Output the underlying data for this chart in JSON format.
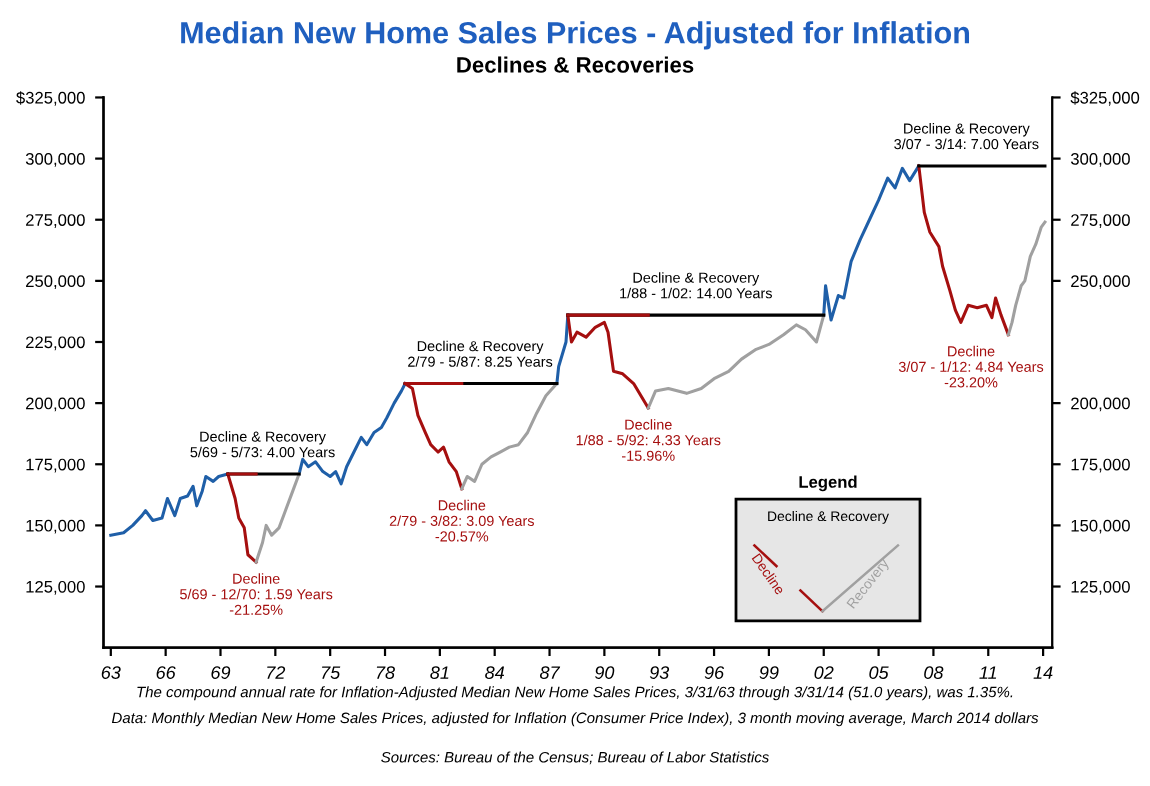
{
  "chart_data": {
    "type": "line",
    "title": "Median New Home Sales Prices - Adjusted for Inflation",
    "subtitle": "Declines & Recoveries",
    "ylim": [
      100000,
      325000
    ],
    "yticks": [
      {
        "value": 325000,
        "label": "$325,000"
      },
      {
        "value": 300000,
        "label": "300,000"
      },
      {
        "value": 275000,
        "label": "275,000"
      },
      {
        "value": 250000,
        "label": "250,000"
      },
      {
        "value": 225000,
        "label": "225,000"
      },
      {
        "value": 200000,
        "label": "200,000"
      },
      {
        "value": 175000,
        "label": "175,000"
      },
      {
        "value": 150000,
        "label": "150,000"
      },
      {
        "value": 125000,
        "label": "125,000"
      }
    ],
    "y2lim": [
      100000,
      325000
    ],
    "y2ticks": [
      {
        "value": 325000,
        "label": "$325,000"
      },
      {
        "value": 300000,
        "label": "300,000"
      },
      {
        "value": 275000,
        "label": "275,000"
      },
      {
        "value": 250000,
        "label": "250,000"
      },
      {
        "value": 200000,
        "label": "200,000"
      },
      {
        "value": 175000,
        "label": "175,000"
      },
      {
        "value": 150000,
        "label": "150,000"
      },
      {
        "value": 125000,
        "label": "125,000"
      }
    ],
    "xlim": [
      1962.6,
      2014.5
    ],
    "xticks": [
      {
        "value": 1963,
        "label": "63"
      },
      {
        "value": 1966,
        "label": "66"
      },
      {
        "value": 1969,
        "label": "69"
      },
      {
        "value": 1972,
        "label": "72"
      },
      {
        "value": 1975,
        "label": "75"
      },
      {
        "value": 1978,
        "label": "78"
      },
      {
        "value": 1981,
        "label": "81"
      },
      {
        "value": 1984,
        "label": "84"
      },
      {
        "value": 1987,
        "label": "87"
      },
      {
        "value": 1990,
        "label": "90"
      },
      {
        "value": 1993,
        "label": "93"
      },
      {
        "value": 1996,
        "label": "96"
      },
      {
        "value": 1999,
        "label": "99"
      },
      {
        "value": 2002,
        "label": "02"
      },
      {
        "value": 2005,
        "label": "05"
      },
      {
        "value": 2008,
        "label": "08"
      },
      {
        "value": 2011,
        "label": "11"
      },
      {
        "value": 2014,
        "label": "14"
      }
    ],
    "grid": false,
    "legend": "bottom right",
    "legend_title": "Legend",
    "line_style": "solid",
    "marker": "none",
    "series": [
      {
        "color": "#1f5fa8",
        "x": [
          1963.0,
          1963.7,
          1964.2,
          1964.7,
          1964.9,
          1965.3,
          1965.8,
          1966.1,
          1966.5,
          1966.8,
          1967.2,
          1967.5,
          1967.7,
          1968.0,
          1968.2,
          1968.6,
          1968.9,
          1969.4,
          1971.2,
          1973.3,
          1973.5,
          1973.8,
          1974.2,
          1974.6,
          1975.0,
          1975.3,
          1975.6,
          1975.9,
          1976.3,
          1976.7,
          1977.0,
          1977.4,
          1977.8,
          1978.1,
          1978.5,
          1978.9,
          1979.1,
          1983.0,
          1987.4,
          1987.5,
          1987.7,
          1987.9,
          1988.0,
          1995.0,
          2002.0,
          2002.1,
          2002.4,
          2002.8,
          2003.1,
          2003.5,
          2004.0,
          2004.5,
          2005.0,
          2005.5,
          2005.9,
          2006.3,
          2006.7,
          2007.2
        ],
        "values": [
          146000,
          147000,
          150000,
          154000,
          156000,
          152000,
          153000,
          161000,
          154000,
          161000,
          162000,
          166000,
          158000,
          164000,
          170000,
          168000,
          170000,
          171000,
          null,
          171000,
          177000,
          174000,
          176000,
          172000,
          170000,
          172000,
          167000,
          174000,
          180000,
          186000,
          183000,
          188000,
          190000,
          194000,
          200000,
          205000,
          208000,
          null,
          208000,
          215000,
          220000,
          225000,
          236000,
          null,
          236000,
          248000,
          234000,
          244000,
          243000,
          258000,
          267000,
          275000,
          283000,
          292000,
          288000,
          296000,
          291000,
          297000
        ]
      },
      {
        "color": "#a50f0f",
        "name": "Decline",
        "x": [
          1969.4,
          1969.8,
          1970.0,
          1970.3,
          1970.5,
          1970.95,
          1975.0,
          1979.1,
          1979.5,
          1979.8,
          1980.2,
          1980.5,
          1980.9,
          1981.2,
          1981.5,
          1981.9,
          1982.2,
          1985.0,
          1988.0,
          1988.2,
          1988.5,
          1989.0,
          1989.5,
          1990.0,
          1990.2,
          1990.5,
          1991.0,
          1991.6,
          1992.4,
          2000.0,
          2007.2,
          2007.5,
          2007.8,
          2008.3,
          2008.5,
          2008.9,
          2009.2,
          2009.5,
          2009.9,
          2010.4,
          2010.9,
          2011.2,
          2011.4,
          2011.7,
          2012.1
        ],
        "values": [
          171000,
          161000,
          153000,
          149000,
          138000,
          135000,
          null,
          208000,
          206000,
          195000,
          188000,
          183000,
          180000,
          182000,
          176000,
          172000,
          165000,
          null,
          236000,
          225000,
          229000,
          227000,
          231000,
          233000,
          229000,
          213000,
          212000,
          208000,
          198000,
          null,
          297000,
          278000,
          270000,
          264000,
          256000,
          246000,
          238000,
          233000,
          240000,
          239000,
          240000,
          235000,
          243000,
          236000,
          228000
        ]
      },
      {
        "color": "#a0a0a0",
        "name": "Recovery",
        "x": [
          1970.95,
          1971.3,
          1971.5,
          1971.8,
          1972.2,
          1972.5,
          1972.9,
          1973.3,
          1978.0,
          1982.2,
          1982.5,
          1982.9,
          1983.3,
          1983.8,
          1984.3,
          1984.8,
          1985.3,
          1985.8,
          1986.3,
          1986.8,
          1987.4,
          1990.0,
          1992.4,
          1992.8,
          1993.5,
          1994.5,
          1995.3,
          1996.0,
          1996.8,
          1997.5,
          1998.3,
          1999.0,
          1999.8,
          2000.5,
          2001.0,
          2001.6,
          2002.0,
          2007.0,
          2012.1,
          2012.3,
          2012.5,
          2012.8,
          2013.0,
          2013.3,
          2013.6,
          2013.9,
          2014.1
        ],
        "values": [
          135000,
          143000,
          150000,
          146000,
          149000,
          155000,
          163000,
          171000,
          null,
          165000,
          170000,
          168000,
          175000,
          178000,
          180000,
          182000,
          183000,
          188000,
          196000,
          203000,
          208000,
          null,
          198000,
          205000,
          206000,
          204000,
          206000,
          210000,
          213000,
          218000,
          222000,
          224000,
          228000,
          232000,
          230000,
          225000,
          236000,
          null,
          228000,
          233000,
          240000,
          248000,
          250000,
          260000,
          265000,
          272000,
          274000
        ]
      },
      {
        "color": "#000000",
        "name": "Decline & Recovery",
        "x": [
          1969.4,
          1973.3,
          1976.0,
          1979.1,
          1987.4,
          1987.7,
          1988.0,
          2002.0,
          2004.0,
          2007.2,
          2014.1
        ],
        "values": [
          171000,
          171000,
          null,
          208000,
          208000,
          null,
          236000,
          236000,
          null,
          297000,
          297000
        ]
      },
      {
        "color": "#a50f0f",
        "x": [
          1969.4,
          1970.95,
          1975.0,
          1979.1,
          1982.2,
          1985.0,
          1988.0,
          1992.4
        ],
        "values": [
          171000,
          171000,
          null,
          208000,
          208000,
          null,
          236000,
          236000
        ]
      }
    ],
    "annotations": [
      {
        "text": "Decline & Recovery\n5/69 - 5/73: 4.00 Years",
        "x": 1971.3,
        "y": 171000
      },
      {
        "text": "Decline\n5/69 - 12/70: 1.59 Years\n-21.25%",
        "x": 1970.95,
        "y": 135000
      },
      {
        "text": "Decline & Recovery\n2/79 - 5/87: 8.25 Years",
        "x": 1983.2,
        "y": 208000
      },
      {
        "text": "Decline\n2/79 - 3/82: 3.09 Years\n-20.57%",
        "x": 1982.2,
        "y": 165000
      },
      {
        "text": "Decline & Recovery\n1/88 - 1/02: 14.00 Years",
        "x": 1995.0,
        "y": 236000
      },
      {
        "text": "Decline\n1/88 - 5/92: 4.33 Years\n-15.96%",
        "x": 1992.4,
        "y": 198000
      },
      {
        "text": "Decline & Recovery\n3/07 - 3/14: 7.00 Years",
        "x": 2009.8,
        "y": 297000
      },
      {
        "text": "Decline\n3/07 - 1/12: 4.84 Years\n-23.20%",
        "x": 2012.1,
        "y": 228000
      },
      "The compound annual rate for Inflation-Adjusted Median New Home Sales Prices, 3/31/63 through 3/31/14 (51.0 years), was 1.35%.",
      "Data: Monthly Median New Home Sales Prices, adjusted for Inflation (Consumer Price Index), 3 month moving average, March 2014 dollars",
      "Sources: Bureau of the Census; Bureau of Labor Statistics"
    ]
  }
}
